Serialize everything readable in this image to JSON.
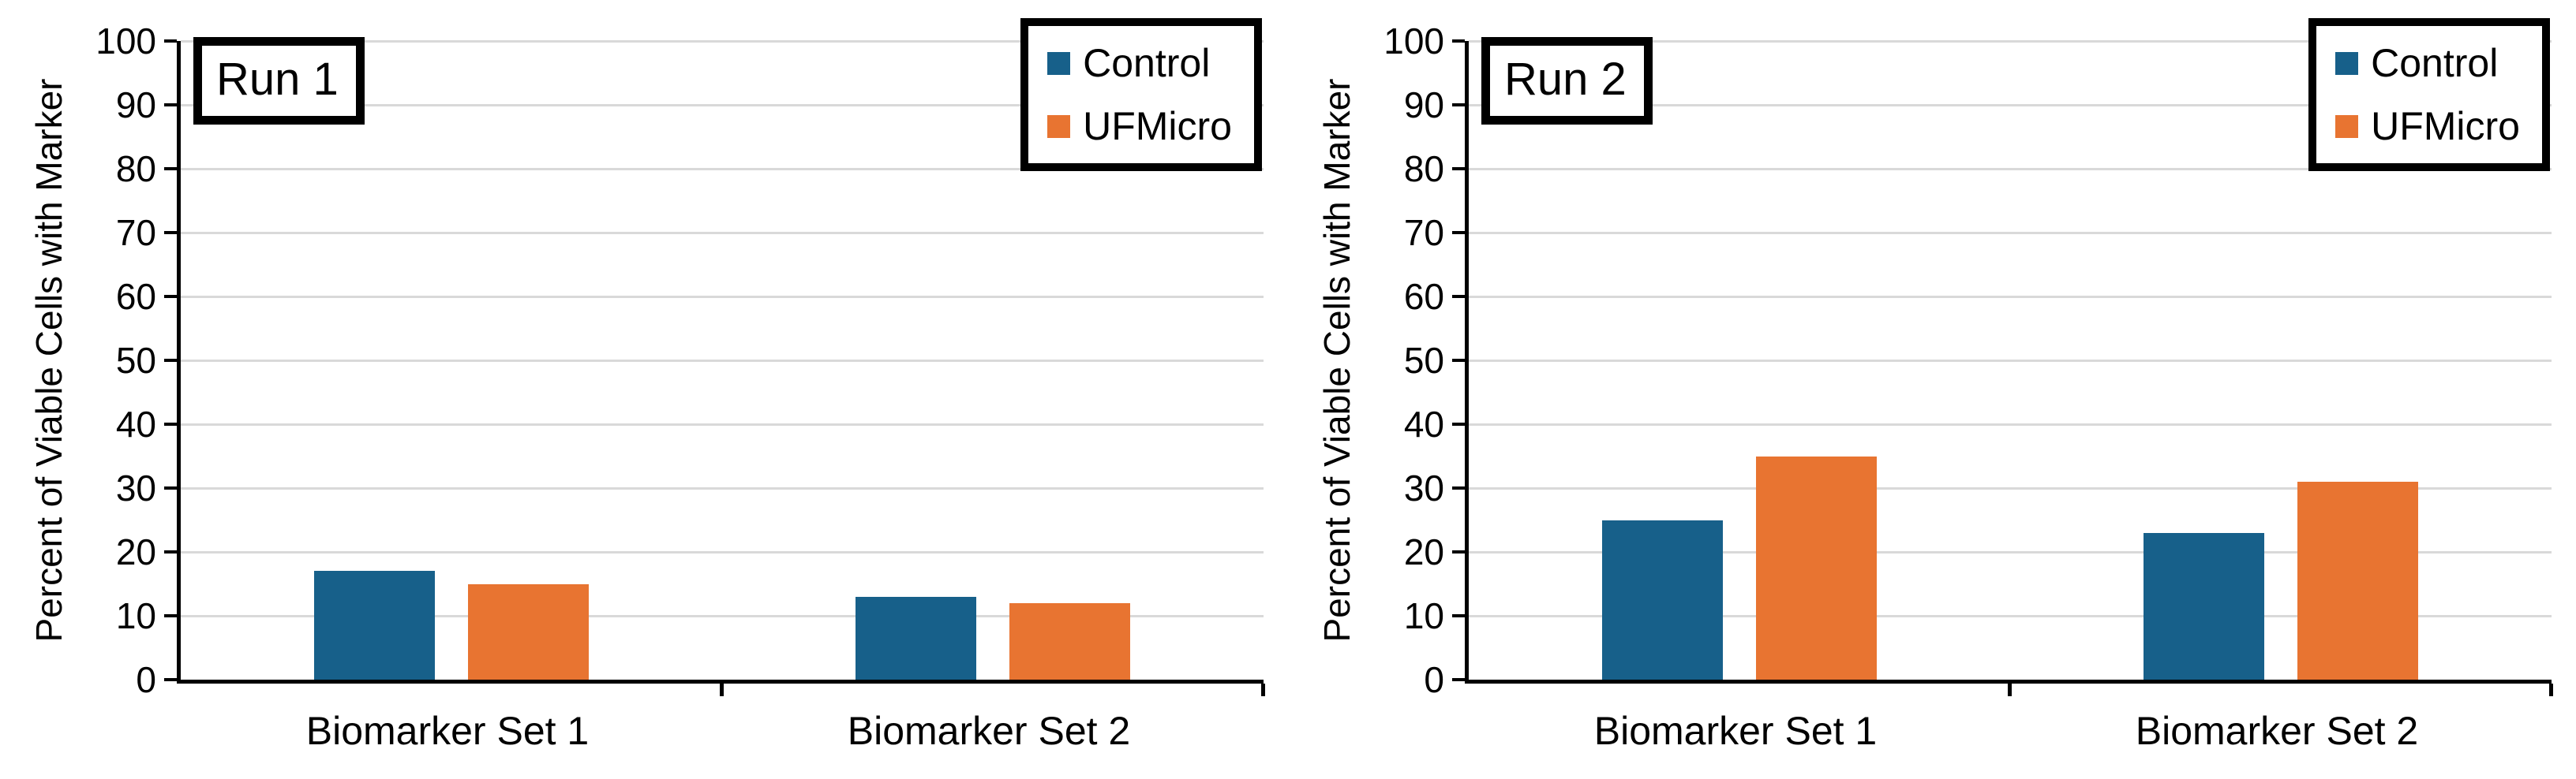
{
  "styles": {
    "background": "#FFFFFF",
    "grid_color": "#D9D9D9",
    "axis_color": "#000000",
    "control_color": "#17608A",
    "ufmicro_color": "#E87431"
  },
  "chart_data": [
    {
      "type": "bar",
      "title": "Run 1",
      "ylabel": "Percent of Viable Cells with Marker",
      "categories": [
        "Biomarker Set 1",
        "Biomarker Set 2"
      ],
      "series": [
        {
          "name": "Control",
          "color": "#17608A",
          "values": [
            17,
            13
          ]
        },
        {
          "name": "UFMicro",
          "color": "#E87431",
          "values": [
            15,
            12
          ]
        }
      ],
      "ylim": [
        0,
        100
      ],
      "yticks": [
        0,
        10,
        20,
        30,
        40,
        50,
        60,
        70,
        80,
        90,
        100
      ],
      "grid": true,
      "legend_position": "top-right"
    },
    {
      "type": "bar",
      "title": "Run 2",
      "ylabel": "Percent of Viable Cells with Marker",
      "categories": [
        "Biomarker Set 1",
        "Biomarker Set 2"
      ],
      "series": [
        {
          "name": "Control",
          "color": "#17608A",
          "values": [
            25,
            23
          ]
        },
        {
          "name": "UFMicro",
          "color": "#E87431",
          "values": [
            35,
            31
          ]
        }
      ],
      "ylim": [
        0,
        100
      ],
      "yticks": [
        0,
        10,
        20,
        30,
        40,
        50,
        60,
        70,
        80,
        90,
        100
      ],
      "grid": true,
      "legend_position": "top-right"
    }
  ]
}
